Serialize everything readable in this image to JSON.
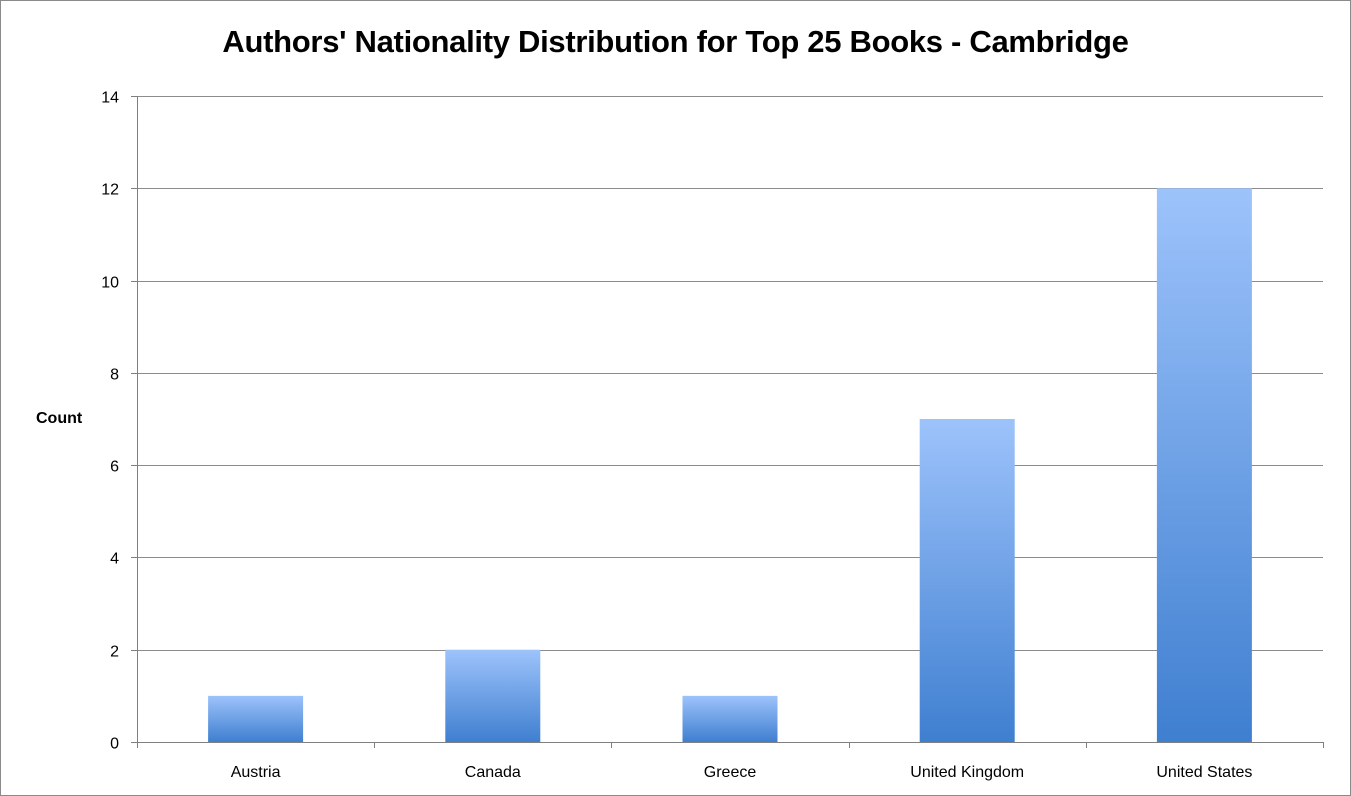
{
  "chart_data": {
    "type": "bar",
    "title": "Authors' Nationality Distribution for Top 25 Books - Cambridge",
    "xlabel": "",
    "ylabel": "Count",
    "categories": [
      "Austria",
      "Canada",
      "Greece",
      "United Kingdom",
      "United States"
    ],
    "values": [
      1,
      2,
      1,
      7,
      12
    ],
    "ylim": [
      0,
      14
    ],
    "yticks": [
      0,
      2,
      4,
      6,
      8,
      10,
      12,
      14
    ],
    "ytick_labels": [
      "0",
      "2",
      "4",
      "6",
      "8",
      "10",
      "12",
      "14"
    ],
    "grid": true,
    "legend": "none",
    "colors": {
      "bar_top": "#9dc3fb",
      "bar_bottom": "#3f7fd0",
      "grid": "#8c8c8c",
      "axis": "#808080"
    }
  }
}
